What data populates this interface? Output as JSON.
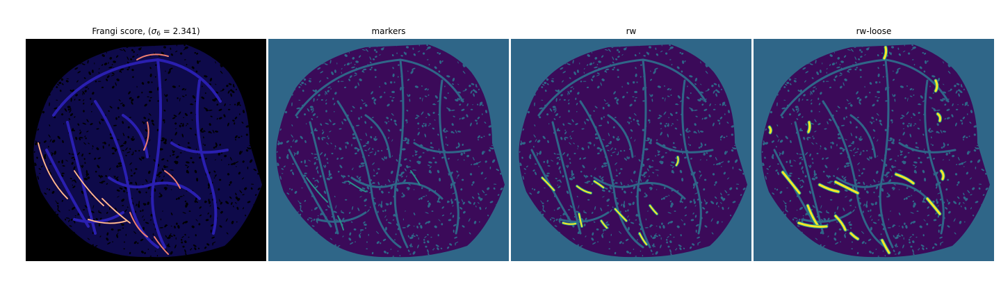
{
  "panels": [
    {
      "title_prefix": "Frangi score, (",
      "title_sigma": "σ",
      "title_sub": "6",
      "title_suffix": " = 2.341)",
      "colormap": "magma",
      "background": "#000000",
      "tissue": "#0e0a4a",
      "vessel": "#2a1fb0",
      "highlight": "#f08070",
      "peak": "#ffd7a0"
    },
    {
      "title": "markers",
      "background": "#2f6688",
      "tissue": "#3b0a59",
      "vessel": "#2f6688",
      "highlight": "#2a8f8a"
    },
    {
      "title": "rw",
      "background": "#2f6688",
      "tissue": "#3b0a59",
      "vessel": "#2f6688",
      "highlight": "#fde725"
    },
    {
      "title": "rw-loose",
      "background": "#2f6688",
      "tissue": "#3b0a59",
      "vessel": "#2f6688",
      "highlight": "#fde725"
    }
  ]
}
